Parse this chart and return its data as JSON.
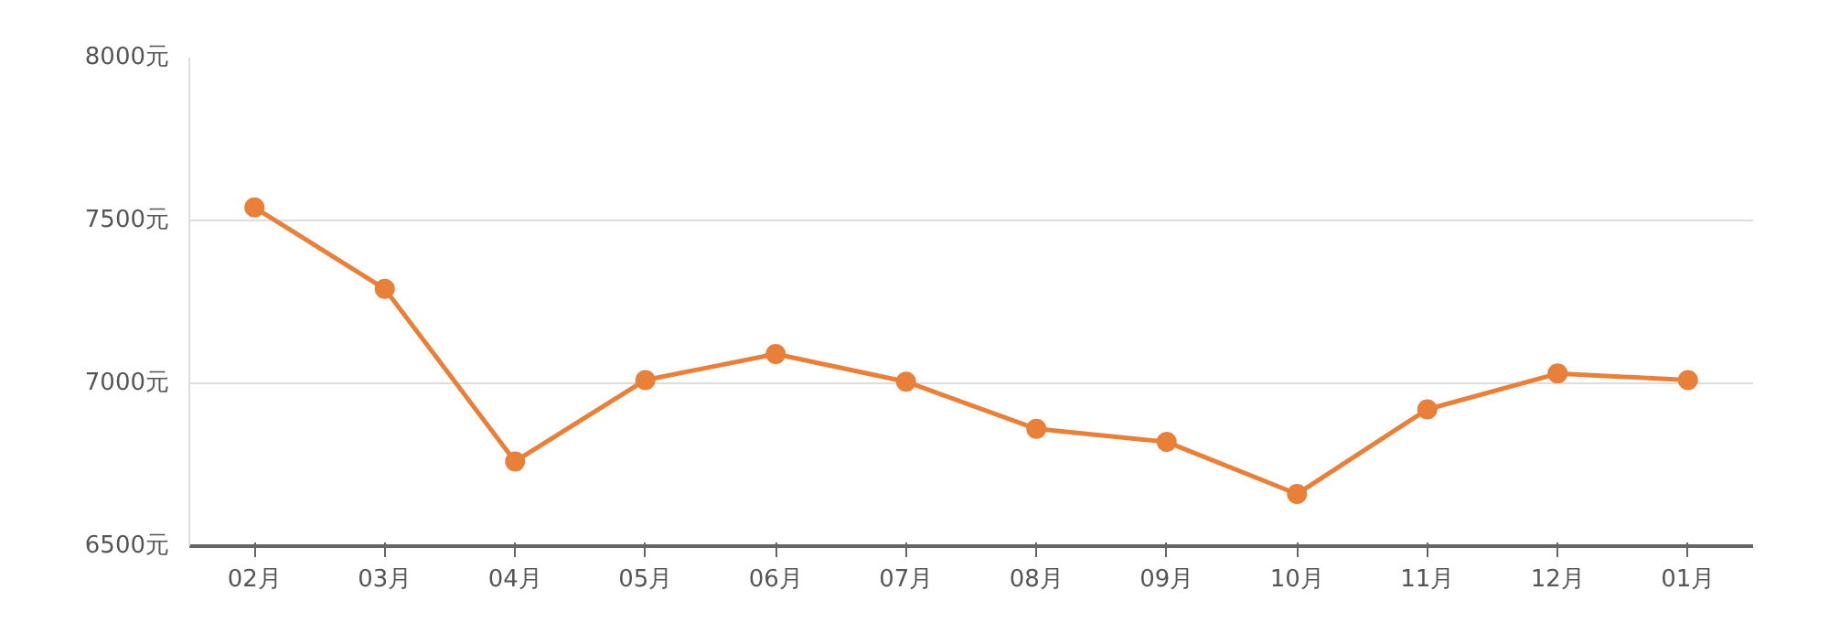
{
  "chart_data": {
    "type": "line",
    "categories": [
      "02月",
      "03月",
      "04月",
      "05月",
      "06月",
      "07月",
      "08月",
      "09月",
      "10月",
      "11月",
      "12月",
      "01月"
    ],
    "series": [
      {
        "color": "#e8803a",
        "values": [
          7540,
          7290,
          6760,
          7010,
          7090,
          7005,
          6860,
          6820,
          6660,
          6920,
          7030,
          7010
        ]
      }
    ],
    "ylim": [
      6500,
      8000
    ],
    "yticks": [
      {
        "value": 6500,
        "label": "6500元"
      },
      {
        "value": 7000,
        "label": "7000元"
      },
      {
        "value": 7500,
        "label": "7500元"
      },
      {
        "value": 8000,
        "label": "8000元"
      }
    ],
    "grid": "y",
    "marker": "circle",
    "line_style": "solid"
  }
}
